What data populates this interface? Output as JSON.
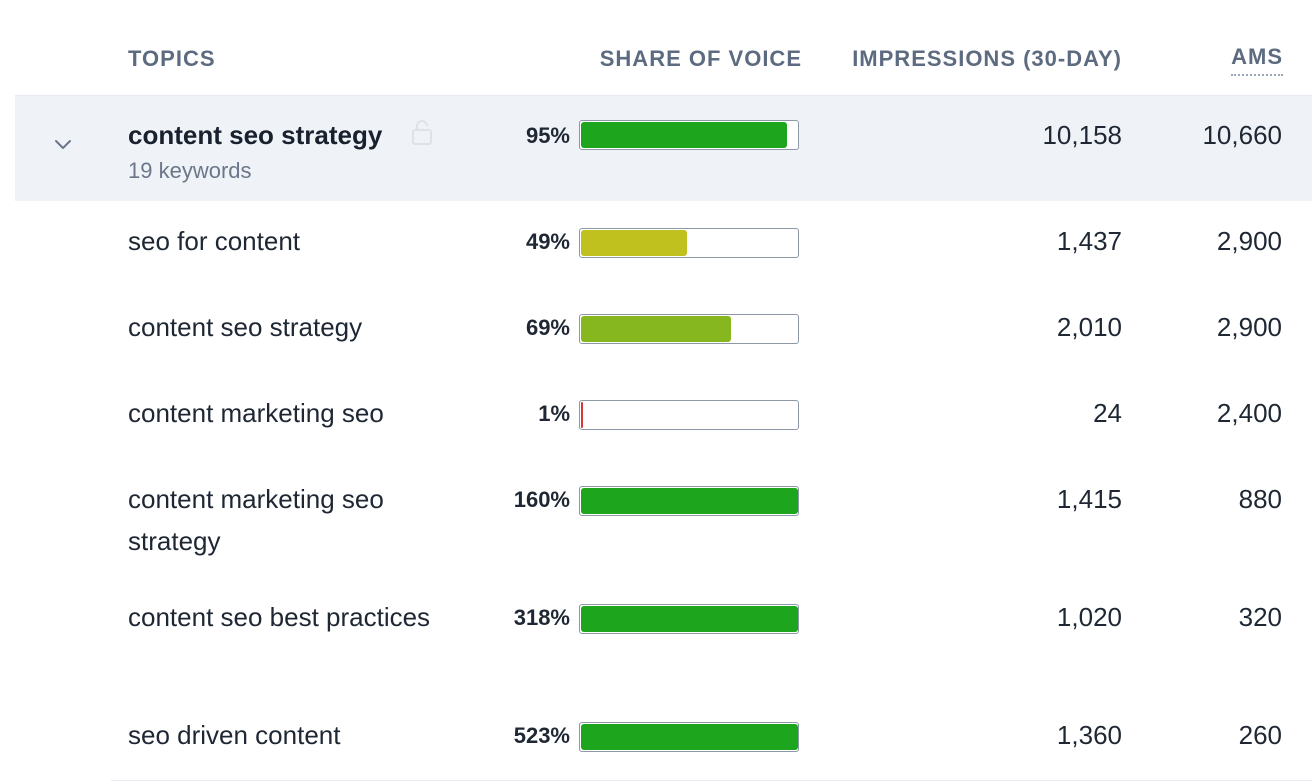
{
  "columns": {
    "topics": "TOPICS",
    "share_of_voice": "SHARE OF VOICE",
    "impressions": "IMPRESSIONS (30-DAY)",
    "ams": "AMS"
  },
  "group": {
    "title": "content seo strategy",
    "subtitle": "19 keywords",
    "share_pct": "95%",
    "share_fraction": 0.95,
    "bar_color": "#1ea51e",
    "impressions": "10,158",
    "ams": "10,660"
  },
  "rows": [
    {
      "name": "seo for content",
      "share_pct": "49%",
      "share_fraction": 0.49,
      "bar_color": "#c0c11f",
      "impressions": "1,437",
      "ams": "2,900"
    },
    {
      "name": "content seo strategy",
      "share_pct": "69%",
      "share_fraction": 0.69,
      "bar_color": "#86b71e",
      "impressions": "2,010",
      "ams": "2,900"
    },
    {
      "name": "content marketing seo",
      "share_pct": "1%",
      "share_fraction": 0.01,
      "bar_color": "#d23a3a",
      "impressions": "24",
      "ams": "2,400"
    },
    {
      "name": "content marketing seo strategy",
      "share_pct": "160%",
      "share_fraction": 1.0,
      "bar_color": "#1ea51e",
      "impressions": "1,415",
      "ams": "880"
    },
    {
      "name": "content seo best practices",
      "share_pct": "318%",
      "share_fraction": 1.0,
      "bar_color": "#1ea51e",
      "impressions": "1,020",
      "ams": "320"
    },
    {
      "name": "seo driven content",
      "share_pct": "523%",
      "share_fraction": 1.0,
      "bar_color": "#1ea51e",
      "impressions": "1,360",
      "ams": "260"
    }
  ],
  "icons": {
    "expand": "chevron-down-icon",
    "lock": "lock-icon"
  }
}
